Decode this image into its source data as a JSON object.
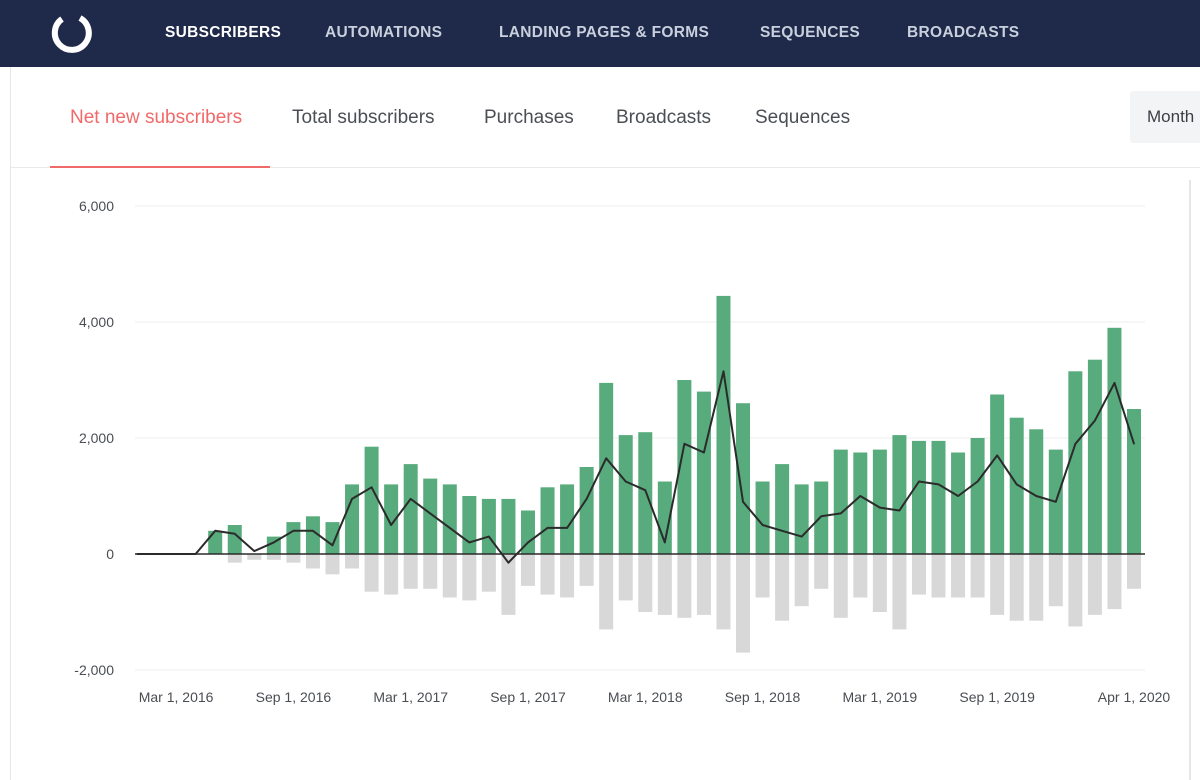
{
  "nav": {
    "items": [
      {
        "label": "SUBSCRIBERS",
        "active": true
      },
      {
        "label": "AUTOMATIONS",
        "active": false
      },
      {
        "label": "LANDING PAGES & FORMS",
        "active": false
      },
      {
        "label": "SEQUENCES",
        "active": false
      },
      {
        "label": "BROADCASTS",
        "active": false
      }
    ],
    "logo_icon": "ring-logo-icon"
  },
  "tabs": [
    {
      "label": "Net new subscribers",
      "active": true
    },
    {
      "label": "Total subscribers",
      "active": false
    },
    {
      "label": "Purchases",
      "active": false
    },
    {
      "label": "Broadcasts",
      "active": false
    },
    {
      "label": "Sequences",
      "active": false
    }
  ],
  "period": {
    "selected": "Month"
  },
  "colors": {
    "nav_bg": "#1f2a4a",
    "accent": "#f06a6a",
    "gains_bar": "#58ab7c",
    "losses_bar": "#d8d8d8",
    "net_line": "#2b2b2b"
  },
  "chart_data": {
    "type": "bar",
    "x_labels": [
      "Mar 1, 2016",
      "Sep 1, 2016",
      "Mar 1, 2017",
      "Sep 1, 2017",
      "Mar 1, 2018",
      "Sep 1, 2018",
      "Mar 1, 2019",
      "Sep 1, 2019",
      "Apr 1, 2020"
    ],
    "x_label_index": [
      2,
      8,
      14,
      20,
      26,
      32,
      38,
      44,
      51
    ],
    "y_ticks": [
      "6,000",
      "4,000",
      "2,000",
      "0",
      "-2,000"
    ],
    "y_tick_values": [
      6000,
      4000,
      2000,
      0,
      -2000
    ],
    "ylim": [
      -2000,
      6000
    ],
    "grid": true,
    "series": [
      {
        "values": [
          0,
          0,
          0,
          0,
          400,
          500,
          0,
          300,
          550,
          650,
          550,
          1200,
          1850,
          1200,
          1550,
          1300,
          1200,
          1000,
          950,
          950,
          750,
          1150,
          1200,
          1500,
          2950,
          2050,
          2100,
          1250,
          3000,
          2800,
          4450,
          2600,
          1250,
          1550,
          1200,
          1250,
          1800,
          1750,
          1800,
          2050,
          1950,
          1950,
          1750,
          2000,
          2750,
          2350,
          2150,
          1800,
          3150,
          3350,
          3900,
          2500
        ]
      },
      {
        "values": [
          0,
          0,
          0,
          0,
          0,
          -150,
          -100,
          -100,
          -150,
          -250,
          -350,
          -250,
          -650,
          -700,
          -600,
          -600,
          -750,
          -800,
          -650,
          -1050,
          -550,
          -700,
          -750,
          -550,
          -1300,
          -800,
          -1000,
          -1050,
          -1100,
          -1050,
          -1300,
          -1700,
          -750,
          -1150,
          -900,
          -600,
          -1100,
          -750,
          -1000,
          -1300,
          -700,
          -750,
          -750,
          -750,
          -1050,
          -1150,
          -1150,
          -900,
          -1250,
          -1050,
          -950,
          -600
        ]
      },
      {
        "values": [
          0,
          0,
          0,
          0,
          400,
          350,
          50,
          200,
          400,
          400,
          150,
          950,
          1150,
          500,
          950,
          700,
          450,
          200,
          300,
          -150,
          200,
          450,
          450,
          950,
          1650,
          1250,
          1100,
          200,
          1900,
          1750,
          3150,
          900,
          500,
          400,
          300,
          650,
          700,
          1000,
          800,
          750,
          1250,
          1200,
          1000,
          1250,
          1700,
          1200,
          1000,
          900,
          1900,
          2300,
          2950,
          1900
        ]
      }
    ]
  }
}
